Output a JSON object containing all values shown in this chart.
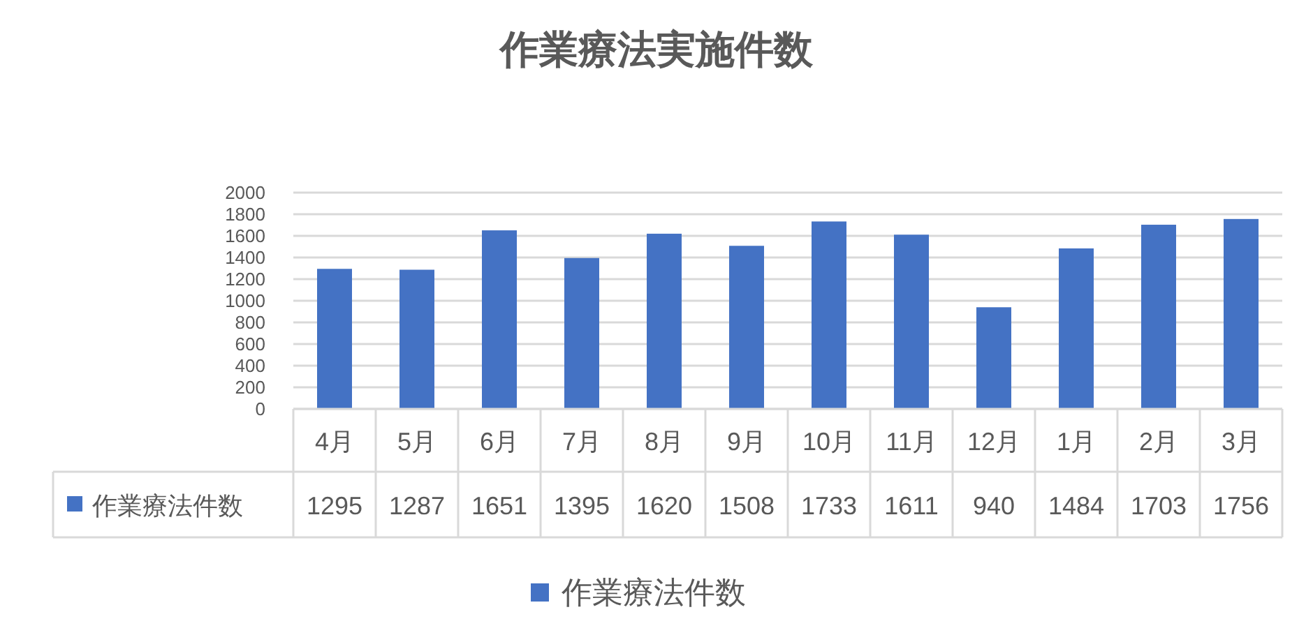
{
  "chart_data": {
    "type": "bar",
    "title": "作業療法実施件数",
    "categories": [
      "4月",
      "5月",
      "6月",
      "7月",
      "8月",
      "9月",
      "10月",
      "11月",
      "12月",
      "1月",
      "2月",
      "3月"
    ],
    "series": [
      {
        "name": "作業療法件数",
        "color": "#4472c4",
        "values": [
          1295,
          1287,
          1651,
          1395,
          1620,
          1508,
          1733,
          1611,
          940,
          1484,
          1703,
          1756
        ]
      }
    ],
    "ylim": [
      0,
      2000
    ],
    "yticks": [
      0,
      200,
      400,
      600,
      800,
      1000,
      1200,
      1400,
      1600,
      1800,
      2000
    ],
    "grid": "y",
    "legend": "bottom",
    "data_labels": true
  }
}
